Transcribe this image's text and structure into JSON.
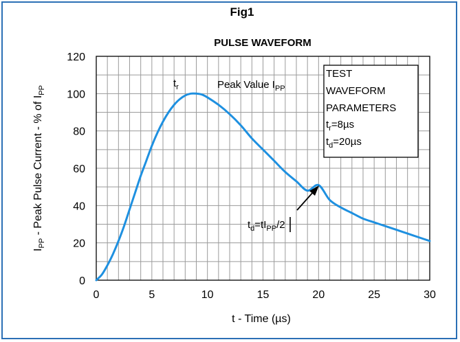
{
  "figure_label": "Fig1",
  "chart_data": {
    "type": "line",
    "title": "PULSE WAVEFORM",
    "xlabel": "t - Time (µs)",
    "ylabel": {
      "main": "I",
      "sub": "PP",
      "rest": " - Peak Pulse Current - % of I",
      "sub2": "PP"
    },
    "xlim": [
      0,
      30
    ],
    "ylim": [
      0,
      120
    ],
    "x_ticks": [
      0,
      5,
      10,
      15,
      20,
      25,
      30
    ],
    "y_ticks": [
      0,
      20,
      40,
      60,
      80,
      100,
      120
    ],
    "grid": true,
    "line_color": "#1e90e0",
    "series": [
      {
        "x": [
          0,
          0.5,
          1,
          1.5,
          2,
          2.5,
          3,
          3.5,
          4,
          4.5,
          5,
          5.5,
          6,
          6.5,
          7,
          7.5,
          8,
          8.5,
          9,
          9.5,
          10,
          11,
          12,
          13,
          14,
          15,
          16,
          17,
          18,
          19,
          20,
          21,
          22,
          23,
          24,
          25,
          26,
          27,
          28,
          29,
          30
        ],
        "y": [
          0,
          3,
          8,
          14,
          21,
          29,
          38,
          47,
          56,
          64,
          72,
          79,
          85,
          90,
          94,
          97,
          99,
          100,
          100,
          99.5,
          98,
          94,
          89,
          83,
          76,
          70,
          64,
          58,
          53,
          48,
          51,
          43,
          39,
          36,
          33,
          31,
          29,
          27,
          25,
          23,
          21
        ]
      }
    ],
    "annotations": {
      "tr": {
        "main": "t",
        "sub": "r"
      },
      "peak": {
        "main": "Peak Value I",
        "sub": "PP"
      },
      "td": {
        "a": "t",
        "a_sub": "d",
        "b": "=t",
        "c": "I",
        "c_sub": "PP",
        "d": "/2"
      }
    },
    "legend": {
      "lines": [
        "TEST",
        "WAVEFORM",
        "PARAMETERS"
      ],
      "param1": {
        "main": "t",
        "sub": "r",
        "val": "=8µs"
      },
      "param2": {
        "main": "t",
        "sub": "d",
        "val": "=20µs"
      }
    }
  }
}
